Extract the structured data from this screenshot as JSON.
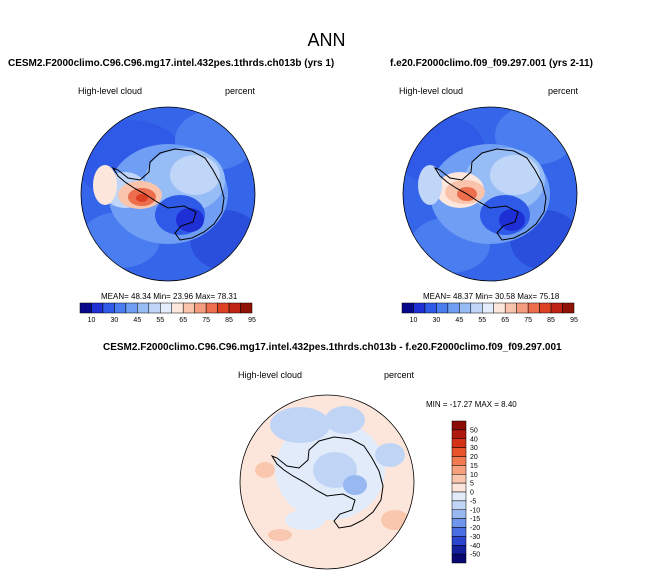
{
  "title": "ANN",
  "panels": [
    {
      "title": "CESM2.F2000climo.C96.C96.mg17.intel.432pes.1thrds.ch013b (yrs 1)",
      "left_label": "High-level cloud",
      "right_label": "percent",
      "stats": "MEAN= 48.34  Min= 23.96  Max= 78.31"
    },
    {
      "title": "f.e20.F2000climo.f09_f09.297.001 (yrs 2-11)",
      "left_label": "High-level cloud",
      "right_label": "percent",
      "stats": "MEAN= 48.37  Min= 30.58  Max= 75.18"
    },
    {
      "title": "CESM2.F2000climo.C96.C96.mg17.intel.432pes.1thrds.ch013b - f.e20.F2000climo.f09_f09.297.001",
      "left_label": "High-level cloud",
      "right_label": "percent",
      "stats": "MIN = -17.27 MAX =   8.40"
    }
  ],
  "colorbar_abs": {
    "ticks": [
      "10",
      "30",
      "45",
      "55",
      "65",
      "75",
      "85",
      "95"
    ],
    "colors": [
      "#08088a",
      "#1f2fd6",
      "#2f5ae8",
      "#4a7df0",
      "#6f9ef4",
      "#97bdf6",
      "#c0d6f8",
      "#e4edfb",
      "#fde6dc",
      "#f9c3ac",
      "#f49c7d",
      "#ec6e4d",
      "#dd4124",
      "#bf2412",
      "#8f1206"
    ]
  },
  "colorbar_diff": {
    "ticks": [
      "50",
      "40",
      "30",
      "20",
      "15",
      "10",
      "5",
      "0",
      "-5",
      "-10",
      "-15",
      "-20",
      "-30",
      "-40",
      "-50"
    ],
    "colors": [
      "#8a0a06",
      "#b01a0e",
      "#d33118",
      "#e9542d",
      "#f27a52",
      "#f6a07e",
      "#f9c6ae",
      "#fce6db",
      "#e1ebfa",
      "#c0d5f6",
      "#98b8f2",
      "#6f95ec",
      "#4a6fe2",
      "#2a46cf",
      "#14219e",
      "#080870"
    ]
  }
}
